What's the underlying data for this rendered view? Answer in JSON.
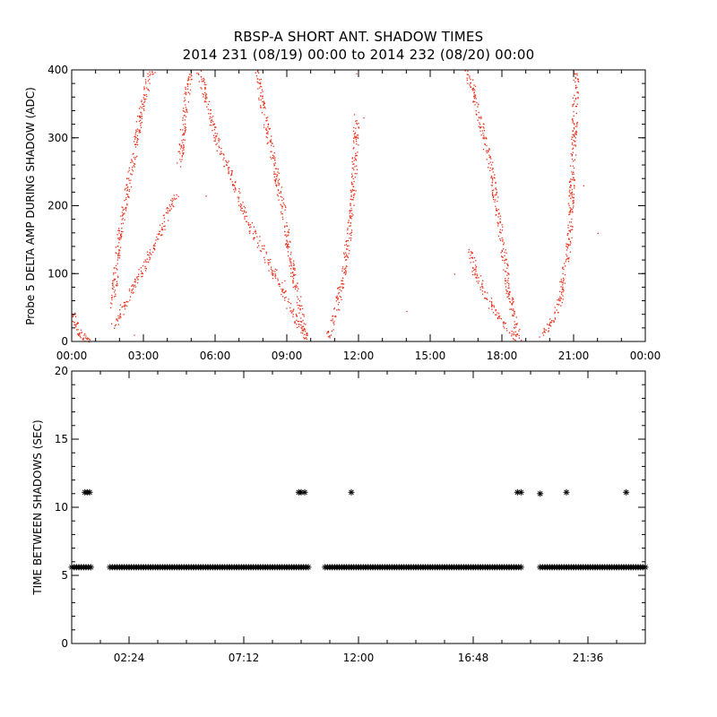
{
  "title": {
    "line1": "RBSP-A SHORT ANT. SHADOW TIMES",
    "line2": "2014 231 (08/19) 00:00 to 2014 232 (08/20) 00:00"
  },
  "colors": {
    "top_points": "#e8321e",
    "bottom_points": "#000000",
    "axes": "#000000"
  },
  "chart_data": [
    {
      "type": "scatter",
      "title": "",
      "xlabel": "",
      "ylabel": "Probe 5 DELTA AMP DURING SHADOW (ADC)",
      "xlim": [
        0,
        24
      ],
      "ylim": [
        0,
        400
      ],
      "x_unit": "hours",
      "x_tick_values": [
        0,
        3,
        6,
        9,
        12,
        15,
        18,
        21,
        24
      ],
      "x_tick_labels": [
        "00:00",
        "03:00",
        "06:00",
        "09:00",
        "12:00",
        "15:00",
        "18:00",
        "21:00",
        "00:00"
      ],
      "y_tick_values": [
        0,
        100,
        200,
        300,
        400
      ],
      "y_tick_labels": [
        "0",
        "100",
        "200",
        "300",
        "400"
      ],
      "marker": "dot",
      "color": "#e8321e",
      "segments": [
        {
          "name": "branch-a1",
          "x": [
            0.0,
            0.2,
            0.4,
            0.7
          ],
          "y": [
            50,
            20,
            8,
            2
          ]
        },
        {
          "name": "branch-a2",
          "x": [
            0.3,
            0.5,
            0.8
          ],
          "y": [
            12,
            5,
            3
          ]
        },
        {
          "name": "branch-b-upper",
          "x": [
            1.7,
            2.0,
            2.4,
            2.8,
            3.2,
            3.5
          ],
          "y": [
            55,
            160,
            240,
            320,
            390,
            405
          ]
        },
        {
          "name": "branch-b-lower",
          "x": [
            1.7,
            2.2,
            2.7,
            3.2,
            3.7,
            4.1,
            4.4
          ],
          "y": [
            20,
            55,
            90,
            125,
            160,
            200,
            220
          ]
        },
        {
          "name": "branch-c-up",
          "x": [
            4.5,
            4.7,
            4.9,
            5.1
          ],
          "y": [
            260,
            330,
            390,
            405
          ]
        },
        {
          "name": "branch-c-down",
          "x": [
            5.3,
            5.6,
            6.1,
            6.7,
            7.3,
            7.9,
            8.6,
            9.4,
            9.8
          ],
          "y": [
            405,
            360,
            290,
            240,
            180,
            140,
            90,
            30,
            5
          ]
        },
        {
          "name": "branch-d",
          "x": [
            7.7,
            8.0,
            8.4,
            8.8,
            9.1,
            9.5,
            9.8
          ],
          "y": [
            405,
            340,
            270,
            200,
            130,
            55,
            8
          ]
        },
        {
          "name": "branch-e",
          "x": [
            10.7,
            11.0,
            11.3,
            11.6,
            11.8,
            11.9
          ],
          "y": [
            8,
            40,
            90,
            160,
            240,
            330
          ]
        },
        {
          "name": "branch-f-upper",
          "x": [
            16.5,
            16.8,
            17.1,
            17.5,
            17.9,
            18.3,
            18.7
          ],
          "y": [
            400,
            370,
            320,
            260,
            170,
            70,
            3
          ]
        },
        {
          "name": "branch-f-lower",
          "x": [
            16.6,
            16.9,
            17.3,
            17.7,
            18.1,
            18.5,
            18.7
          ],
          "y": [
            140,
            100,
            70,
            45,
            25,
            8,
            1
          ]
        },
        {
          "name": "branch-g",
          "x": [
            19.6,
            20.0,
            20.4,
            20.8,
            21.0,
            21.1
          ],
          "y": [
            8,
            25,
            60,
            150,
            300,
            400
          ]
        }
      ],
      "isolated_points": [
        {
          "x": 2.6,
          "y": 10
        },
        {
          "x": 5.6,
          "y": 215
        },
        {
          "x": 8.9,
          "y": 90
        },
        {
          "x": 12.2,
          "y": 330
        },
        {
          "x": 14.0,
          "y": 45
        },
        {
          "x": 16.0,
          "y": 100
        },
        {
          "x": 22.0,
          "y": 160
        },
        {
          "x": 21.4,
          "y": 230
        },
        {
          "x": 11.9,
          "y": 395
        }
      ]
    },
    {
      "type": "scatter",
      "title": "",
      "xlabel": "",
      "ylabel": "TIME BETWEEN SHADOWS (SEC)",
      "xlim": [
        0,
        24
      ],
      "ylim": [
        0,
        20
      ],
      "x_unit": "hours",
      "x_tick_values": [
        2.4,
        7.2,
        12.0,
        16.8,
        21.6
      ],
      "x_tick_labels": [
        "02:24",
        "07:12",
        "12:00",
        "16:48",
        "21:36"
      ],
      "y_tick_values": [
        0,
        5,
        10,
        15,
        20
      ],
      "y_tick_labels": [
        "0",
        "5",
        "10",
        "15",
        "20"
      ],
      "marker": "asterisk",
      "color": "#000000",
      "band_value": 5.6,
      "band_intervals": [
        [
          0.0,
          0.8
        ],
        [
          1.6,
          9.9
        ],
        [
          10.6,
          18.8
        ],
        [
          19.6,
          24.0
        ]
      ],
      "band_step_hours": 0.1,
      "outliers": {
        "x": [
          0.55,
          0.65,
          0.75,
          9.5,
          9.6,
          9.75,
          11.7,
          18.65,
          18.8,
          19.6,
          20.7,
          23.2
        ],
        "y": [
          11.1,
          11.1,
          11.1,
          11.1,
          11.1,
          11.1,
          11.1,
          11.1,
          11.1,
          11.0,
          11.1,
          11.1
        ]
      }
    }
  ]
}
